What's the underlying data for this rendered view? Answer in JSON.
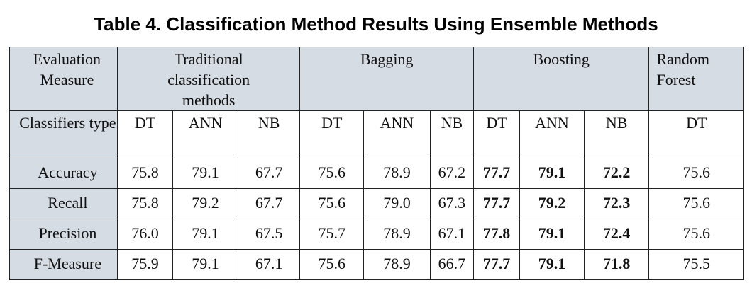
{
  "caption": "Table 4. Classification Method Results Using Ensemble Methods",
  "header_row1": {
    "evaluation_measure": "Evaluation Measure",
    "traditional": "Traditional classification methods",
    "bagging": "Bagging",
    "boosting": "Boosting",
    "random_forest": "Random Forest"
  },
  "header_row2": {
    "label": "Classifiers type",
    "classifiers": [
      "DT",
      "ANN",
      "NB",
      "DT",
      "ANN",
      "NB",
      "DT",
      "ANN",
      "NB",
      "DT"
    ]
  },
  "rows": [
    {
      "measure": "Accuracy",
      "values": [
        "75.8",
        "79.1",
        "67.7",
        "75.6",
        "78.9",
        "67.2",
        "77.7",
        "79.1",
        "72.2",
        "75.6"
      ]
    },
    {
      "measure": "Recall",
      "values": [
        "75.8",
        "79.2",
        "67.7",
        "75.6",
        "79.0",
        "67.3",
        "77.7",
        "79.2",
        "72.3",
        "75.6"
      ]
    },
    {
      "measure": "Precision",
      "values": [
        "76.0",
        "79.1",
        "67.5",
        "75.7",
        "78.9",
        "67.1",
        "77.8",
        "79.1",
        "72.4",
        "75.6"
      ]
    },
    {
      "measure": "F-Measure",
      "values": [
        "75.9",
        "79.1",
        "67.1",
        "75.6",
        "78.9",
        "66.7",
        "77.7",
        "79.1",
        "71.8",
        "75.5"
      ]
    }
  ],
  "colors": {
    "header_shade": "#d6dce4",
    "border": "#222222",
    "text": "#111111"
  }
}
